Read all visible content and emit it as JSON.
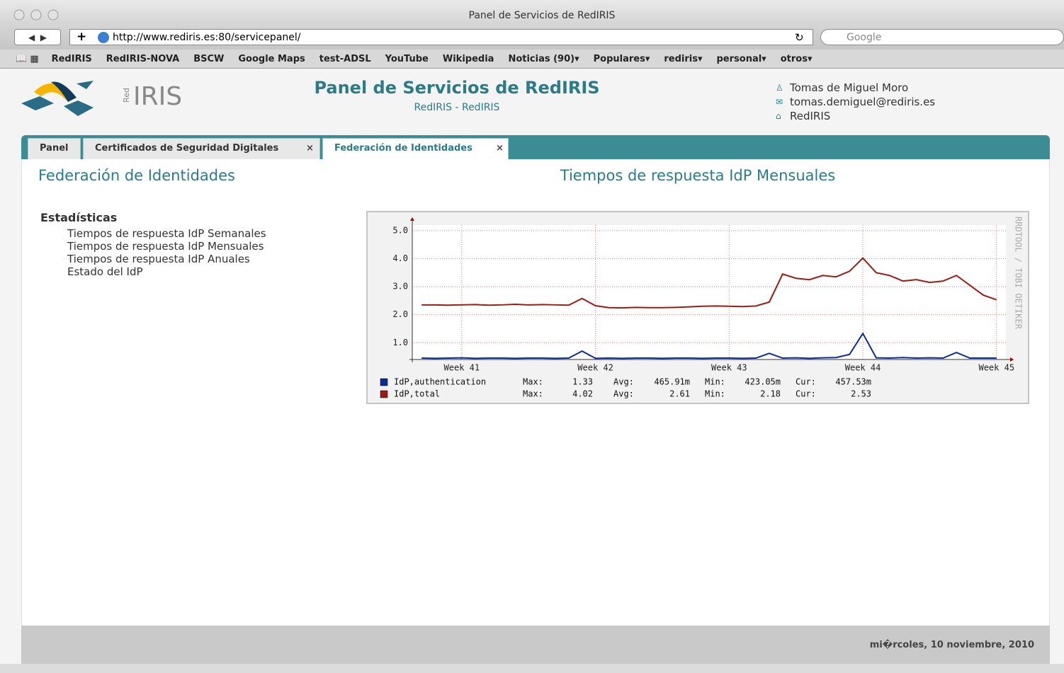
{
  "browser": {
    "window_title": "Panel de Servicios de RedIRIS",
    "url": "http://www.rediris.es:80/servicepanel/",
    "search_placeholder": "Google",
    "bookmarks": [
      "RedIRIS",
      "RedIRIS-NOVA",
      "BSCW",
      "Google Maps",
      "test-ADSL",
      "YouTube",
      "Wikipedia",
      "Noticias (90)▾",
      "Populares▾",
      "rediris▾",
      "personal▾",
      "otros▾"
    ]
  },
  "header": {
    "logo_small": "Red",
    "logo_text": "IRIS",
    "title": "Panel de Servicios de RedIRIS",
    "subtitle": "RedIRIS - RedIRIS",
    "user_name": "Tomas de Miguel Moro",
    "user_email": "tomas.demiguel@rediris.es",
    "user_org": "RedIRIS"
  },
  "tabs": [
    "Panel",
    "Certificados de Seguridad Digitales",
    "Federación de Identidades"
  ],
  "page": {
    "title": "Federación de Identidades",
    "menu": {
      "heading": "Estadísticas",
      "items": [
        "Tiempos de respuesta IdP Semanales",
        "Tiempos de respuesta IdP Mensuales",
        "Tiempos de respuesta IdP Anuales",
        "Estado del IdP"
      ]
    }
  },
  "chart_data": {
    "type": "line",
    "title": "Tiempos de respuesta IdP Mensuales",
    "watermark": "RRDTOOL / TOBI OETIKER",
    "x": [
      40.7,
      40.8,
      40.9,
      41.0,
      41.1,
      41.2,
      41.3,
      41.4,
      41.5,
      41.6,
      41.7,
      41.8,
      41.9,
      42.0,
      42.1,
      42.2,
      42.3,
      42.4,
      42.5,
      42.6,
      42.7,
      42.8,
      42.9,
      43.0,
      43.1,
      43.2,
      43.3,
      43.4,
      43.5,
      43.6,
      43.7,
      43.8,
      43.9,
      44.0,
      44.1,
      44.2,
      44.3,
      44.4,
      44.5,
      44.6,
      44.7,
      44.8,
      44.9,
      45.0
    ],
    "series": [
      {
        "name": "IdP,authentication",
        "color": "#0c2a93",
        "values": [
          0.45,
          0.44,
          0.45,
          0.46,
          0.44,
          0.45,
          0.45,
          0.44,
          0.45,
          0.45,
          0.44,
          0.45,
          0.7,
          0.44,
          0.45,
          0.44,
          0.45,
          0.45,
          0.44,
          0.45,
          0.45,
          0.44,
          0.45,
          0.45,
          0.44,
          0.45,
          0.62,
          0.45,
          0.46,
          0.44,
          0.46,
          0.47,
          0.58,
          1.33,
          0.46,
          0.45,
          0.47,
          0.45,
          0.46,
          0.45,
          0.65,
          0.45,
          0.45,
          0.45
        ],
        "stats": [
          {
            "label": "Max:",
            "value": "1.33"
          },
          {
            "label": "Avg:",
            "value": "465.91m"
          },
          {
            "label": "Min:",
            "value": "423.05m"
          },
          {
            "label": "Cur:",
            "value": "457.53m"
          }
        ]
      },
      {
        "name": "IdP,total",
        "color": "#9b1c12",
        "values": [
          2.35,
          2.35,
          2.34,
          2.35,
          2.36,
          2.34,
          2.35,
          2.37,
          2.35,
          2.36,
          2.35,
          2.34,
          2.58,
          2.32,
          2.25,
          2.24,
          2.26,
          2.25,
          2.25,
          2.26,
          2.28,
          2.3,
          2.31,
          2.3,
          2.29,
          2.31,
          2.45,
          3.45,
          3.3,
          3.25,
          3.4,
          3.35,
          3.55,
          4.02,
          3.5,
          3.4,
          3.2,
          3.25,
          3.15,
          3.2,
          3.4,
          3.05,
          2.7,
          2.53
        ],
        "stats": [
          {
            "label": "Max:",
            "value": "4.02"
          },
          {
            "label": "Avg:",
            "value": "2.61"
          },
          {
            "label": "Min:",
            "value": "2.18"
          },
          {
            "label": "Cur:",
            "value": "2.53"
          }
        ]
      }
    ],
    "xlim": [
      40.63,
      45.07
    ],
    "xticks": [
      {
        "value": 41,
        "label": "Week 41"
      },
      {
        "value": 42,
        "label": "Week 42"
      },
      {
        "value": 43,
        "label": "Week 43"
      },
      {
        "value": 44,
        "label": "Week 44"
      },
      {
        "value": 45,
        "label": "Week 45"
      }
    ],
    "ylim": [
      0.4,
      5.2
    ],
    "yticks": [
      {
        "value": 1,
        "label": "1.0"
      },
      {
        "value": 2,
        "label": "2.0"
      },
      {
        "value": 3,
        "label": "3.0"
      },
      {
        "value": 4,
        "label": "4.0"
      },
      {
        "value": 5,
        "label": "5.0"
      }
    ],
    "grid": true
  },
  "footer": {
    "date": "mi�rcoles, 10 noviembre, 2010"
  }
}
